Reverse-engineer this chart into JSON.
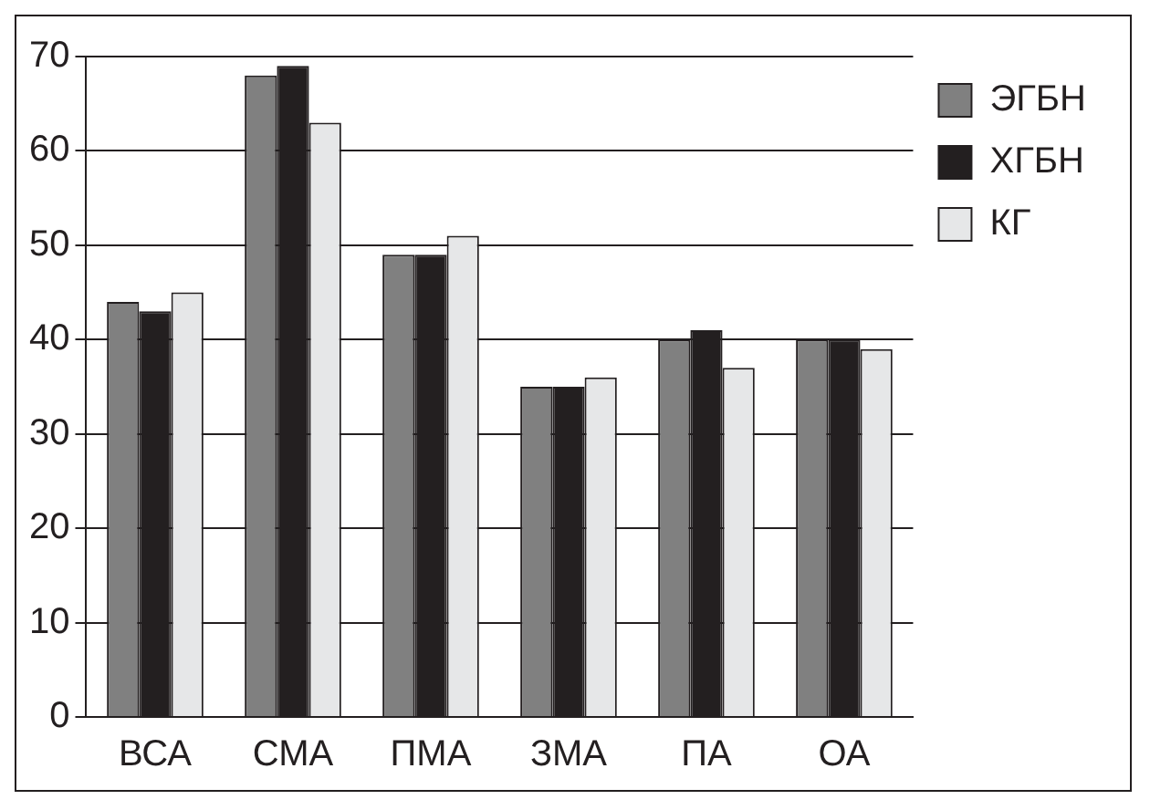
{
  "chart_data": {
    "type": "bar",
    "categories": [
      "ВСА",
      "СМА",
      "ПМА",
      "ЗМА",
      "ПА",
      "ОА"
    ],
    "series": [
      {
        "name": "ЭГБН",
        "color": "#808080",
        "values": [
          44,
          68,
          49,
          35,
          40,
          40
        ]
      },
      {
        "name": "ХГБН",
        "color": "#231f20",
        "values": [
          43,
          69,
          49,
          35,
          41,
          40
        ]
      },
      {
        "name": "КГ",
        "color": "#e6e7e8",
        "values": [
          45,
          63,
          51,
          36,
          37,
          39
        ]
      }
    ],
    "ylim": [
      0,
      70
    ],
    "yticks": [
      0,
      10,
      20,
      30,
      40,
      50,
      60,
      70
    ],
    "grid": "y",
    "legend": "top right"
  }
}
